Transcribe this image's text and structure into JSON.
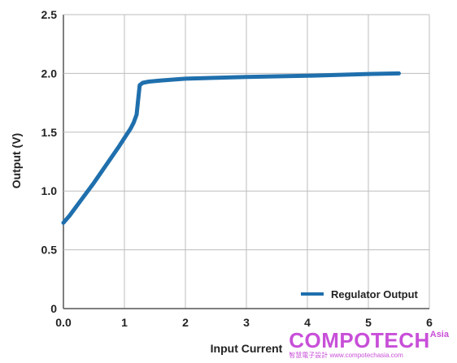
{
  "chart_data": {
    "type": "line",
    "title": "",
    "xlabel": "Input Current",
    "ylabel": "Output (V)",
    "xlim": [
      0,
      6
    ],
    "ylim": [
      0,
      2.5
    ],
    "xticks": [
      "0.0",
      "1",
      "2",
      "3",
      "4",
      "5",
      "6"
    ],
    "yticks": [
      "0",
      "0.5",
      "1.0",
      "1.5",
      "2.0",
      "2.5"
    ],
    "grid": true,
    "legend_position": "bottom-right",
    "series": [
      {
        "name": "Regulator Output",
        "color": "#1f6fad",
        "x": [
          0.0,
          0.1,
          0.3,
          0.5,
          0.7,
          0.9,
          1.0,
          1.1,
          1.15,
          1.2,
          1.22,
          1.25,
          1.3,
          1.4,
          1.6,
          2.0,
          3.0,
          4.0,
          5.0,
          5.5
        ],
        "y": [
          0.73,
          0.79,
          0.93,
          1.07,
          1.22,
          1.37,
          1.45,
          1.53,
          1.58,
          1.65,
          1.75,
          1.9,
          1.92,
          1.93,
          1.94,
          1.955,
          1.97,
          1.98,
          1.995,
          2.0
        ]
      }
    ]
  },
  "watermark": {
    "main": "COMPOTECH",
    "sup": "Asia",
    "sub": "智慧電子設計 www.compotechasia.com",
    "color": "#c84fd8"
  }
}
